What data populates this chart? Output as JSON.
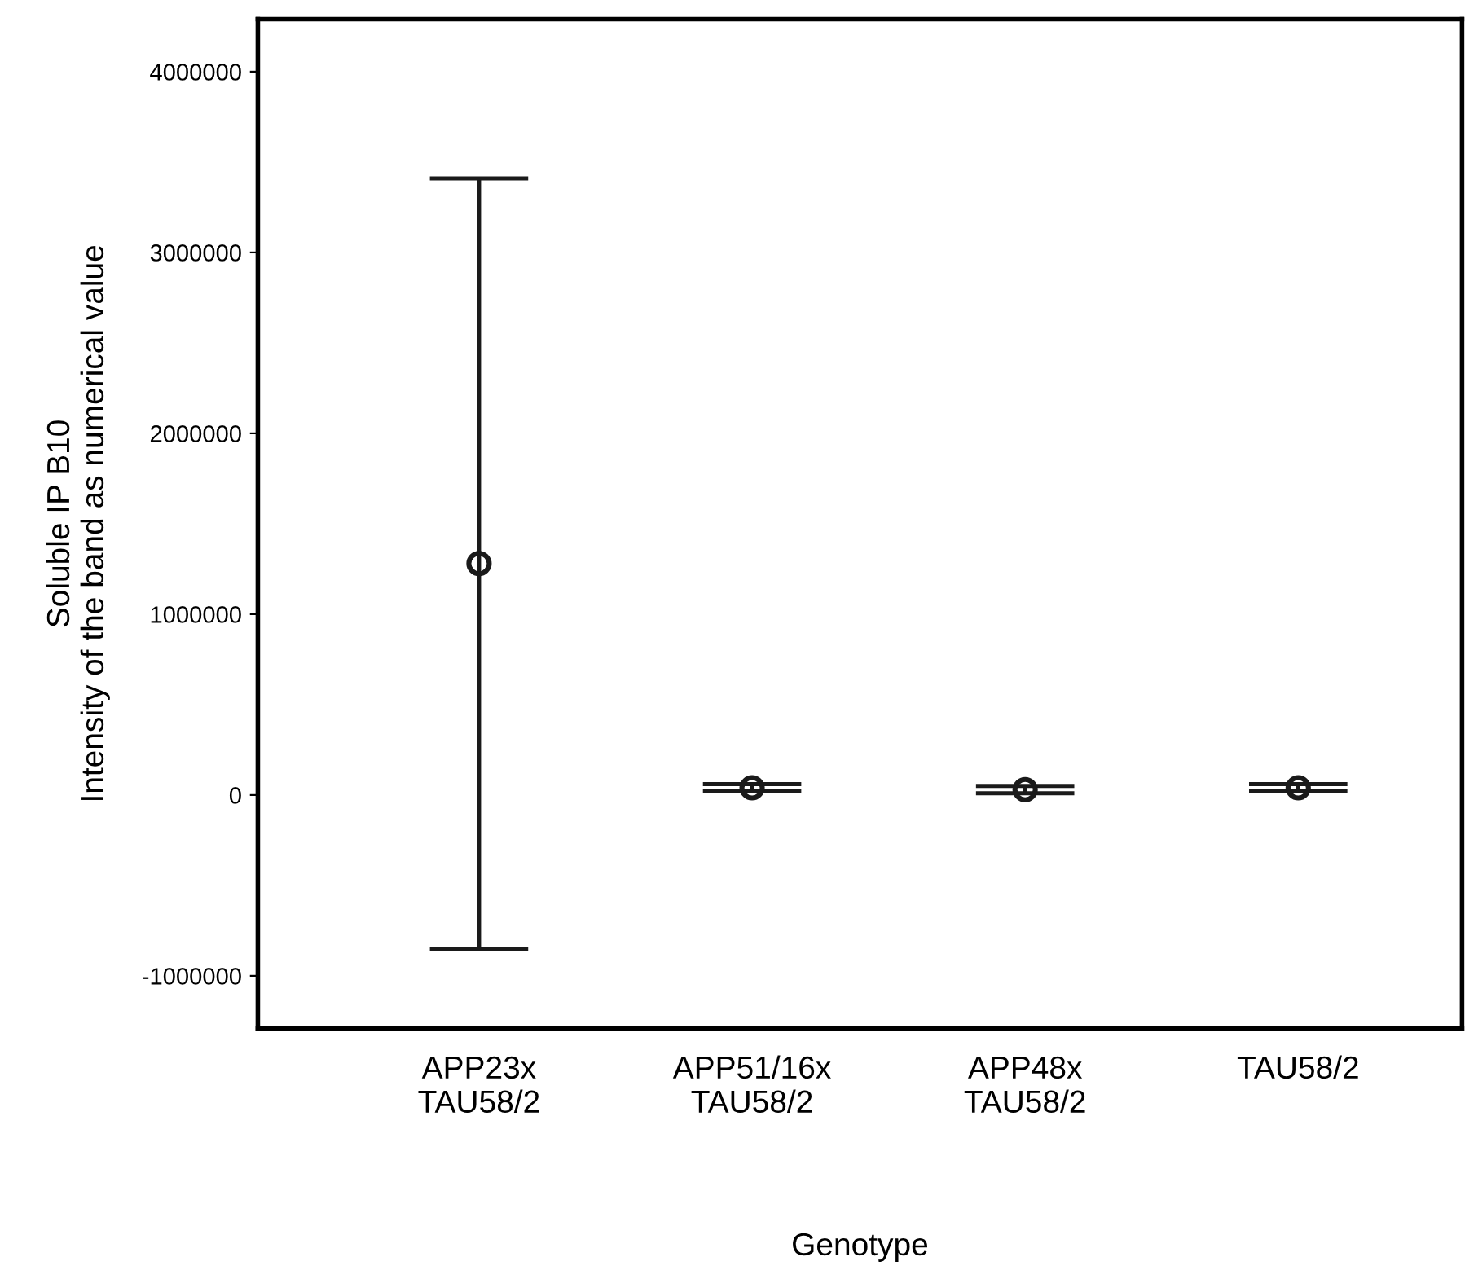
{
  "chart_data": {
    "type": "scatter",
    "xlabel": "Genotype",
    "ylabel": "Soluble IP B10\nIntensity of the band as numerical value",
    "categories": [
      "APP23x\nTAU58/2",
      "APP51/16x\nTAU58/2",
      "APP48x\nTAU58/2",
      "TAU58/2"
    ],
    "color": "#1a1a1a",
    "values": [
      1280000,
      40000,
      30000,
      40000
    ],
    "errors": [
      2130000,
      20000,
      20000,
      20000
    ],
    "ylim": [
      -1290000,
      4290000
    ],
    "yticks": [
      -1000000,
      0,
      1000000,
      2000000,
      3000000,
      4000000
    ],
    "grid": false,
    "legend": false,
    "marker": "circle"
  }
}
